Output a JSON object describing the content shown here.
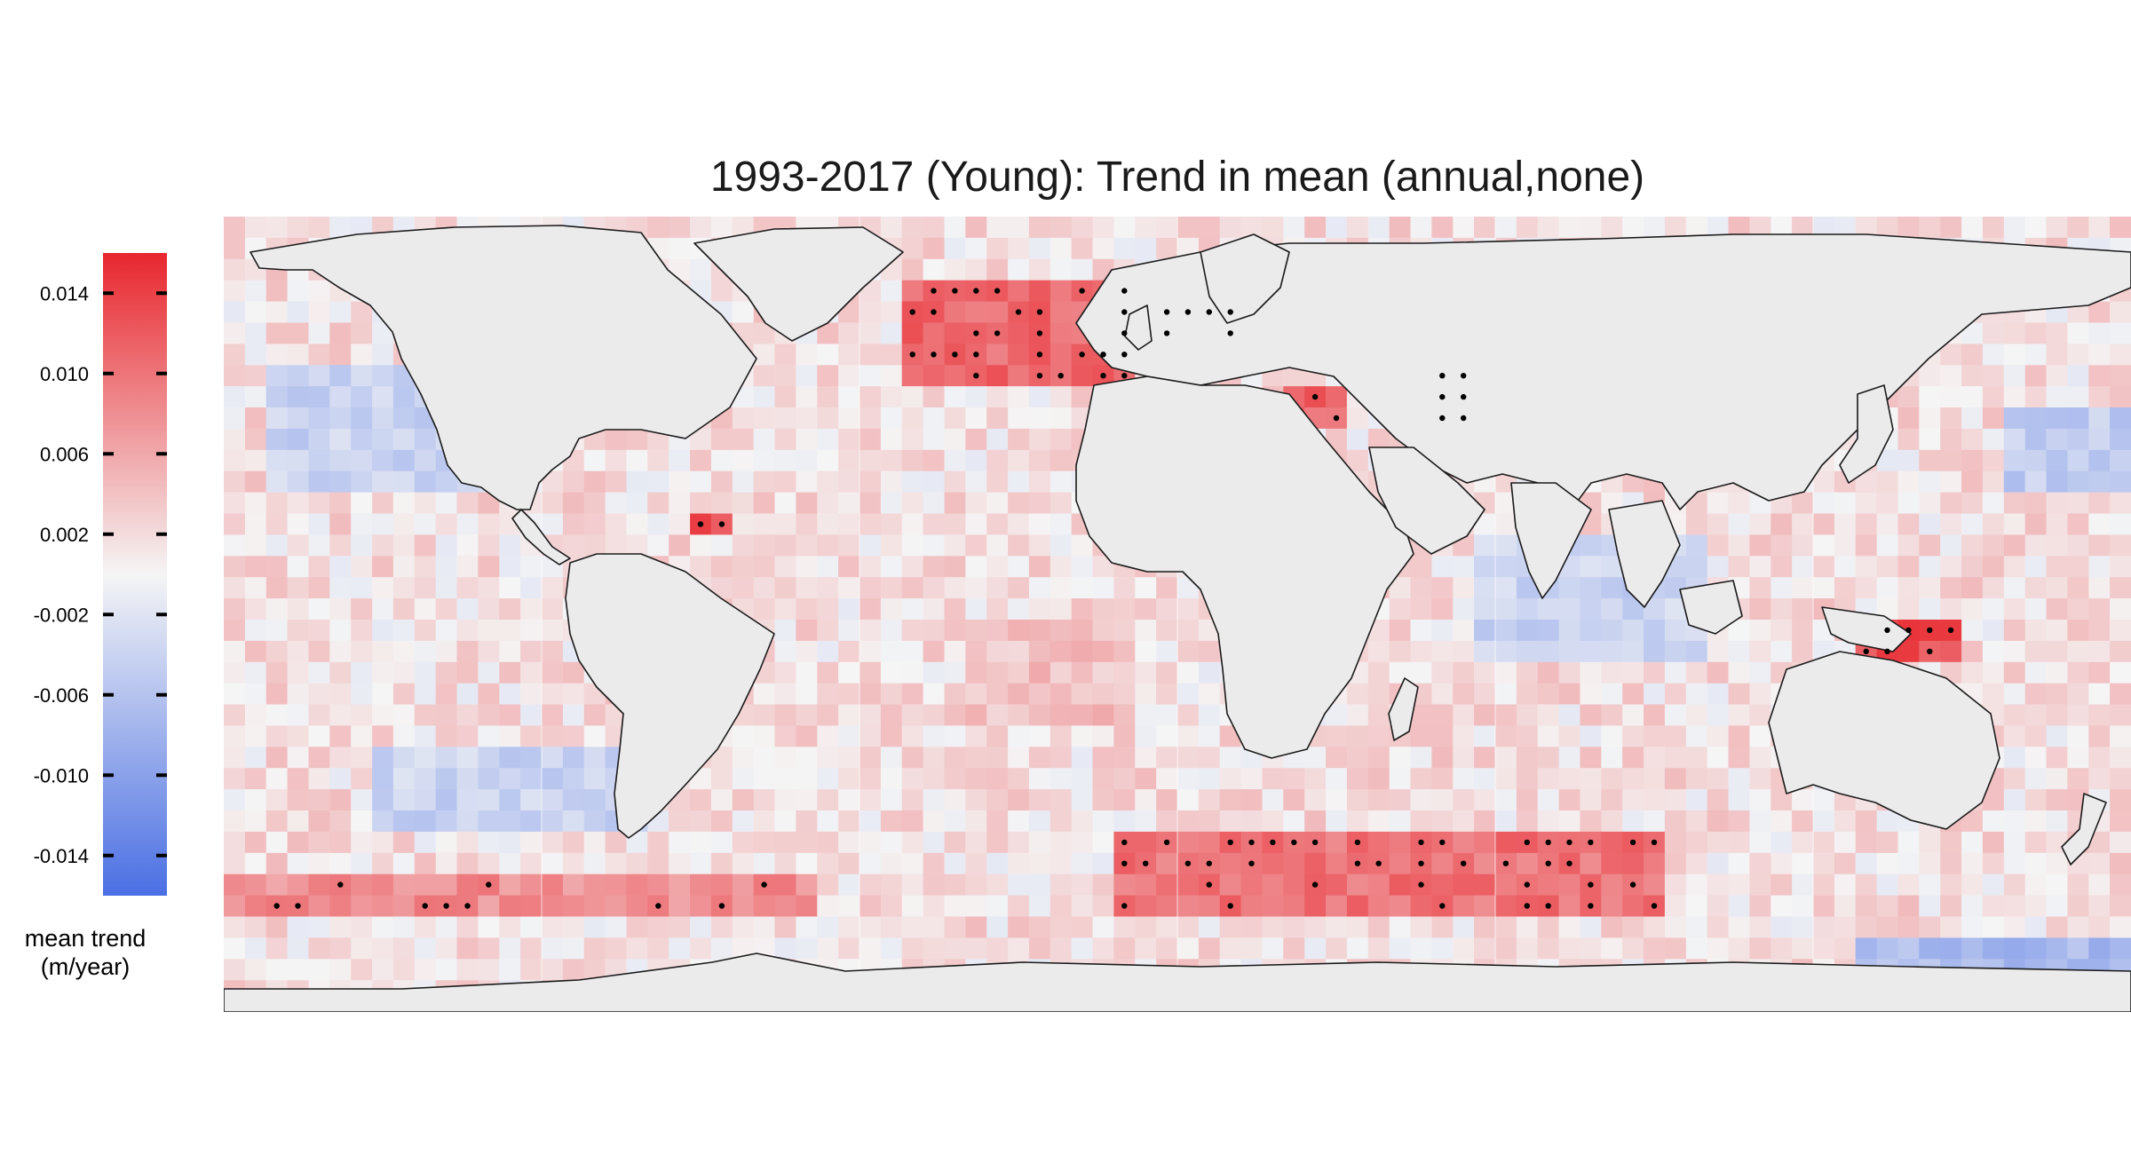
{
  "title": "1993-2017 (Young): Trend in mean (annual,none)",
  "colorbar": {
    "title_lines": [
      "mean trend",
      "(m/year)"
    ],
    "ticks": [
      {
        "value": 0.014,
        "label": "0.014"
      },
      {
        "value": 0.01,
        "label": "0.010"
      },
      {
        "value": 0.006,
        "label": "0.006"
      },
      {
        "value": 0.002,
        "label": "0.002"
      },
      {
        "value": -0.002,
        "label": "-0.002"
      },
      {
        "value": -0.006,
        "label": "-0.006"
      },
      {
        "value": -0.01,
        "label": "-0.010"
      },
      {
        "value": -0.014,
        "label": "-0.014"
      }
    ],
    "range": [
      -0.016,
      0.016
    ],
    "colors": {
      "low": "#4a6fe3",
      "mid": "#f5f5f5",
      "high": "#e8272e"
    }
  },
  "map": {
    "projection": "equirectangular",
    "lon_range": [
      -180,
      180
    ],
    "lat_range": [
      -75,
      75
    ],
    "land_color": "#ebebeb",
    "coast_color": "#1a1a1a",
    "grid_color": "#ffffff",
    "cell_size_deg": 4,
    "significance_marker": "black dot",
    "regions": [
      {
        "name": "North Atlantic subpolar",
        "lon": [
          -50,
          -10
        ],
        "lat": [
          45,
          62
        ],
        "trend": 0.011
      },
      {
        "name": "Southern Ocean Indian-Atlantic",
        "lon": [
          -10,
          90
        ],
        "lat": [
          -55,
          -40
        ],
        "trend": 0.01
      },
      {
        "name": "Southern Ocean Pacific",
        "lon": [
          -180,
          -70
        ],
        "lat": [
          -58,
          -48
        ],
        "trend": 0.008
      },
      {
        "name": "South Atlantic subtropical",
        "lon": [
          -40,
          -10
        ],
        "lat": [
          -20,
          0
        ],
        "trend": 0.004
      },
      {
        "name": "North Pacific east",
        "lon": [
          -170,
          -130
        ],
        "lat": [
          25,
          45
        ],
        "trend": -0.004
      },
      {
        "name": "South Pacific southeast",
        "lon": [
          -150,
          -100
        ],
        "lat": [
          -40,
          -25
        ],
        "trend": -0.004
      },
      {
        "name": "North Pacific west",
        "lon": [
          155,
          180
        ],
        "lat": [
          25,
          40
        ],
        "trend": -0.005
      },
      {
        "name": "Indian Ocean central",
        "lon": [
          55,
          100
        ],
        "lat": [
          -10,
          15
        ],
        "trend": -0.004
      },
      {
        "name": "Antarctic margin Pacific",
        "lon": [
          130,
          180
        ],
        "lat": [
          -68,
          -62
        ],
        "trend": -0.007
      },
      {
        "name": "North Sea",
        "lon": [
          -5,
          10
        ],
        "lat": [
          52,
          60
        ],
        "trend": 0.011
      },
      {
        "name": "Caspian Sea",
        "lon": [
          47,
          54
        ],
        "lat": [
          37,
          47
        ],
        "trend": 0.013
      },
      {
        "name": "Gulf of Honduras",
        "lon": [
          -90,
          -86
        ],
        "lat": [
          15,
          20
        ],
        "trend": 0.013
      },
      {
        "name": "New Guinea",
        "lon": [
          130,
          148
        ],
        "lat": [
          -8,
          0
        ],
        "trend": 0.013
      },
      {
        "name": "Aegean Sea",
        "lon": [
          20,
          30
        ],
        "lat": [
          35,
          42
        ],
        "trend": 0.011
      }
    ]
  }
}
